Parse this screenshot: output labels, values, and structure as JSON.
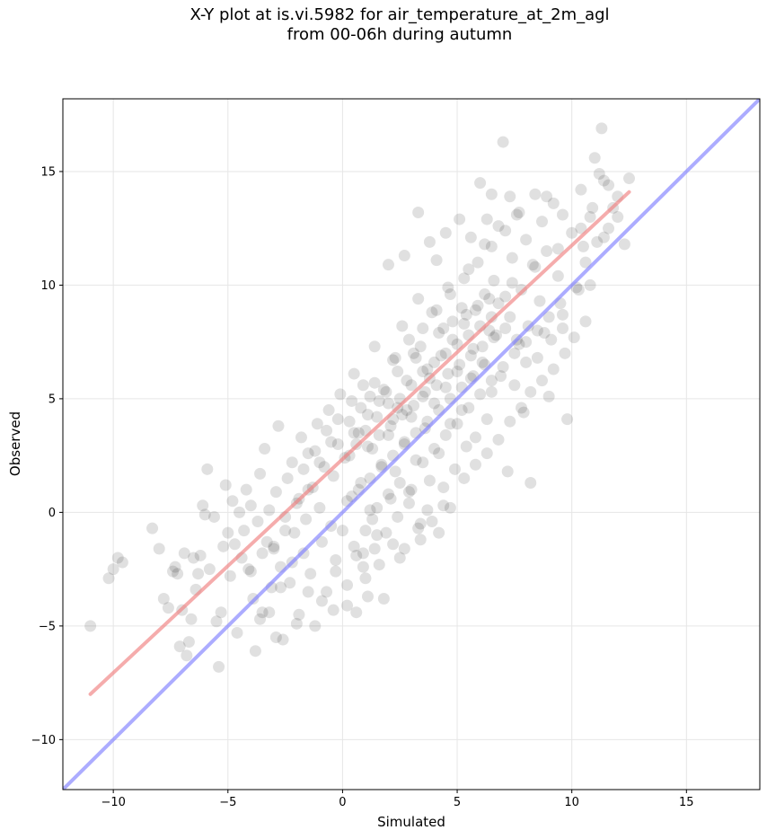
{
  "chart_data": {
    "type": "scatter",
    "title_line1": "X-Y plot at is.vi.5982 for air_temperature_at_2m_agl",
    "title_line2": "from 00-06h during autumn",
    "xlabel": "Simulated",
    "ylabel": "Observed",
    "xlim": [
      -12.2,
      18.2
    ],
    "ylim": [
      -12.2,
      18.2
    ],
    "xticks": [
      -10,
      -5,
      0,
      5,
      10,
      15
    ],
    "yticks": [
      -10,
      -5,
      0,
      5,
      10,
      15
    ],
    "xtick_labels": [
      "−10",
      "−5",
      "0",
      "5",
      "10",
      "15"
    ],
    "ytick_labels": [
      "−10",
      "−5",
      "0",
      "5",
      "10",
      "15"
    ],
    "grid": true,
    "point_color": "#000000",
    "point_alpha": 0.12,
    "fit_line": {
      "color": "#f08080",
      "x": [
        -11.0,
        12.5
      ],
      "y": [
        -8.0,
        14.1
      ]
    },
    "identity_line": {
      "color": "#7f7fff",
      "x": [
        -12.2,
        18.2
      ],
      "y": [
        -12.2,
        18.2
      ]
    },
    "points": [
      [
        -11.0,
        -5.0
      ],
      [
        -10.2,
        -2.9
      ],
      [
        -10.0,
        -2.5
      ],
      [
        -9.8,
        -2.0
      ],
      [
        -9.6,
        -2.2
      ],
      [
        -8.3,
        -0.7
      ],
      [
        -8.0,
        -1.6
      ],
      [
        -7.8,
        -3.8
      ],
      [
        -7.6,
        -4.2
      ],
      [
        -7.4,
        -2.6
      ],
      [
        -7.3,
        -2.4
      ],
      [
        -7.2,
        -2.7
      ],
      [
        -7.1,
        -5.9
      ],
      [
        -7.0,
        -4.3
      ],
      [
        -6.9,
        -1.8
      ],
      [
        -6.8,
        -6.3
      ],
      [
        -6.7,
        -5.7
      ],
      [
        -6.6,
        -4.7
      ],
      [
        -6.5,
        -2.0
      ],
      [
        -6.4,
        -3.4
      ],
      [
        -6.3,
        -2.7
      ],
      [
        -6.2,
        -1.9
      ],
      [
        -6.1,
        0.3
      ],
      [
        -6.0,
        -0.1
      ],
      [
        -5.9,
        1.9
      ],
      [
        -5.8,
        -2.5
      ],
      [
        -5.6,
        -0.2
      ],
      [
        -5.5,
        -4.8
      ],
      [
        -5.4,
        -6.8
      ],
      [
        -5.3,
        -4.4
      ],
      [
        -5.2,
        -1.5
      ],
      [
        -5.1,
        1.2
      ],
      [
        -5.0,
        -0.9
      ],
      [
        -4.9,
        -2.8
      ],
      [
        -4.8,
        0.5
      ],
      [
        -4.7,
        -1.4
      ],
      [
        -4.6,
        -5.3
      ],
      [
        -4.5,
        0.0
      ],
      [
        -4.4,
        -2.0
      ],
      [
        -4.3,
        -0.8
      ],
      [
        -4.2,
        1.0
      ],
      [
        -4.1,
        -2.5
      ],
      [
        -4.0,
        0.3
      ],
      [
        -3.9,
        -3.8
      ],
      [
        -3.8,
        -6.1
      ],
      [
        -3.7,
        -0.4
      ],
      [
        -3.6,
        1.7
      ],
      [
        -3.5,
        -4.4
      ],
      [
        -3.4,
        2.8
      ],
      [
        -3.3,
        -1.3
      ],
      [
        -3.2,
        0.1
      ],
      [
        -3.1,
        -3.3
      ],
      [
        -3.0,
        -1.6
      ],
      [
        -2.9,
        0.9
      ],
      [
        -2.8,
        3.8
      ],
      [
        -2.7,
        -2.4
      ],
      [
        -2.6,
        -5.6
      ],
      [
        -2.5,
        -0.2
      ],
      [
        -2.4,
        1.5
      ],
      [
        -2.3,
        -3.1
      ],
      [
        -2.2,
        2.2
      ],
      [
        -2.1,
        -0.9
      ],
      [
        -2.0,
        -4.9
      ],
      [
        -1.9,
        0.6
      ],
      [
        -1.8,
        3.3
      ],
      [
        -1.7,
        -1.8
      ],
      [
        -1.6,
        -0.3
      ],
      [
        -1.5,
        2.6
      ],
      [
        -1.4,
        -2.7
      ],
      [
        -1.3,
        1.1
      ],
      [
        -1.2,
        -5.0
      ],
      [
        -1.1,
        3.9
      ],
      [
        -1.0,
        0.2
      ],
      [
        -0.9,
        -1.3
      ],
      [
        -0.8,
        2.0
      ],
      [
        -0.7,
        -3.5
      ],
      [
        -0.6,
        4.5
      ],
      [
        -0.5,
        -0.6
      ],
      [
        -0.4,
        1.6
      ],
      [
        -0.3,
        -2.1
      ],
      [
        -0.2,
        3.0
      ],
      [
        -0.1,
        5.2
      ],
      [
        0.0,
        -0.8
      ],
      [
        0.1,
        2.4
      ],
      [
        0.2,
        -4.1
      ],
      [
        0.3,
        4.0
      ],
      [
        0.4,
        0.7
      ],
      [
        0.5,
        6.1
      ],
      [
        0.6,
        -1.9
      ],
      [
        0.7,
        3.5
      ],
      [
        0.8,
        1.3
      ],
      [
        0.9,
        5.6
      ],
      [
        1.0,
        -2.9
      ],
      [
        1.1,
        4.3
      ],
      [
        1.2,
        0.1
      ],
      [
        1.3,
        2.8
      ],
      [
        1.4,
        7.3
      ],
      [
        1.5,
        -1.0
      ],
      [
        1.6,
        4.9
      ],
      [
        1.7,
        2.1
      ],
      [
        1.8,
        -3.8
      ],
      [
        1.9,
        5.3
      ],
      [
        2.0,
        3.4
      ],
      [
        2.1,
        0.6
      ],
      [
        2.2,
        6.7
      ],
      [
        2.3,
        1.8
      ],
      [
        2.4,
        4.6
      ],
      [
        2.5,
        -2.0
      ],
      [
        2.6,
        8.2
      ],
      [
        2.7,
        3.1
      ],
      [
        2.8,
        5.8
      ],
      [
        2.9,
        0.9
      ],
      [
        3.0,
        4.2
      ],
      [
        3.1,
        7.0
      ],
      [
        3.2,
        2.3
      ],
      [
        3.3,
        9.4
      ],
      [
        3.4,
        -0.5
      ],
      [
        3.5,
        5.1
      ],
      [
        3.6,
        3.7
      ],
      [
        3.7,
        6.3
      ],
      [
        3.8,
        1.4
      ],
      [
        3.9,
        8.8
      ],
      [
        4.0,
        4.8
      ],
      [
        4.1,
        11.1
      ],
      [
        4.2,
        2.6
      ],
      [
        4.3,
        6.9
      ],
      [
        4.4,
        0.3
      ],
      [
        4.5,
        5.5
      ],
      [
        4.6,
        9.9
      ],
      [
        4.7,
        3.9
      ],
      [
        4.8,
        7.6
      ],
      [
        4.9,
        1.9
      ],
      [
        5.0,
        6.2
      ],
      [
        5.1,
        12.9
      ],
      [
        5.2,
        4.5
      ],
      [
        5.3,
        8.3
      ],
      [
        5.4,
        2.9
      ],
      [
        5.5,
        10.7
      ],
      [
        5.6,
        5.9
      ],
      [
        5.7,
        7.2
      ],
      [
        5.8,
        3.3
      ],
      [
        5.9,
        9.1
      ],
      [
        6.0,
        14.5
      ],
      [
        6.1,
        6.6
      ],
      [
        6.2,
        11.8
      ],
      [
        6.3,
        4.1
      ],
      [
        6.4,
        8.0
      ],
      [
        6.5,
        5.3
      ],
      [
        6.6,
        10.2
      ],
      [
        6.7,
        7.8
      ],
      [
        6.8,
        12.6
      ],
      [
        6.9,
        6.0
      ],
      [
        7.0,
        16.3
      ],
      [
        7.1,
        9.5
      ],
      [
        7.2,
        1.8
      ],
      [
        7.3,
        8.6
      ],
      [
        7.4,
        11.2
      ],
      [
        7.5,
        5.6
      ],
      [
        7.6,
        13.1
      ],
      [
        7.7,
        7.4
      ],
      [
        7.8,
        9.8
      ],
      [
        7.9,
        4.4
      ],
      [
        8.0,
        12.0
      ],
      [
        8.1,
        8.2
      ],
      [
        8.2,
        1.3
      ],
      [
        8.3,
        10.9
      ],
      [
        8.4,
        14.0
      ],
      [
        8.5,
        6.8
      ],
      [
        8.6,
        9.3
      ],
      [
        8.7,
        12.8
      ],
      [
        8.8,
        7.9
      ],
      [
        8.9,
        11.5
      ],
      [
        9.0,
        5.1
      ],
      [
        9.2,
        13.6
      ],
      [
        9.4,
        10.4
      ],
      [
        9.6,
        8.7
      ],
      [
        9.8,
        4.1
      ],
      [
        10.0,
        12.3
      ],
      [
        10.2,
        9.9
      ],
      [
        10.4,
        14.2
      ],
      [
        10.6,
        11.0
      ],
      [
        10.8,
        13.0
      ],
      [
        11.0,
        15.6
      ],
      [
        11.2,
        14.9
      ],
      [
        11.3,
        16.9
      ],
      [
        11.4,
        12.1
      ],
      [
        11.6,
        14.4
      ],
      [
        11.8,
        13.4
      ],
      [
        12.0,
        13.0
      ],
      [
        12.3,
        11.8
      ],
      [
        12.5,
        14.7
      ],
      [
        0.5,
        3.5
      ],
      [
        1.0,
        3.6
      ],
      [
        1.5,
        4.2
      ],
      [
        2.0,
        4.8
      ],
      [
        2.5,
        5.0
      ],
      [
        3.0,
        5.6
      ],
      [
        3.5,
        6.2
      ],
      [
        4.0,
        6.6
      ],
      [
        4.5,
        7.0
      ],
      [
        5.0,
        7.4
      ],
      [
        5.5,
        7.8
      ],
      [
        6.0,
        8.2
      ],
      [
        6.5,
        8.6
      ],
      [
        0.8,
        4.6
      ],
      [
        1.2,
        5.1
      ],
      [
        1.8,
        5.4
      ],
      [
        2.2,
        4.1
      ],
      [
        2.8,
        4.5
      ],
      [
        3.2,
        6.8
      ],
      [
        3.8,
        5.9
      ],
      [
        4.2,
        7.9
      ],
      [
        4.8,
        8.4
      ],
      [
        5.2,
        9.0
      ],
      [
        5.8,
        8.9
      ],
      [
        6.2,
        9.6
      ],
      [
        6.8,
        9.2
      ],
      [
        0.3,
        2.5
      ],
      [
        0.6,
        3.0
      ],
      [
        1.1,
        2.9
      ],
      [
        1.6,
        3.4
      ],
      [
        2.1,
        3.8
      ],
      [
        2.6,
        4.3
      ],
      [
        3.1,
        4.7
      ],
      [
        3.6,
        5.3
      ],
      [
        4.1,
        5.6
      ],
      [
        4.6,
        6.1
      ],
      [
        5.1,
        6.5
      ],
      [
        5.6,
        6.9
      ],
      [
        6.1,
        7.3
      ],
      [
        6.6,
        7.7
      ],
      [
        7.1,
        8.1
      ],
      [
        -0.5,
        3.1
      ],
      [
        -1.0,
        2.2
      ],
      [
        -1.5,
        1.0
      ],
      [
        -2.0,
        0.4
      ],
      [
        -2.5,
        -0.8
      ],
      [
        -3.0,
        -1.5
      ],
      [
        -3.5,
        -1.8
      ],
      [
        -4.0,
        -2.6
      ],
      [
        -0.2,
        4.1
      ],
      [
        -0.7,
        3.6
      ],
      [
        -1.2,
        2.7
      ],
      [
        -1.7,
        1.9
      ],
      [
        0.4,
        4.9
      ],
      [
        1.4,
        5.7
      ],
      [
        2.4,
        6.2
      ],
      [
        3.4,
        7.3
      ],
      [
        4.4,
        8.1
      ],
      [
        5.4,
        8.7
      ],
      [
        6.4,
        9.4
      ],
      [
        7.4,
        10.1
      ],
      [
        8.4,
        10.8
      ],
      [
        9.4,
        11.6
      ],
      [
        10.4,
        12.5
      ],
      [
        0.2,
        0.5
      ],
      [
        0.7,
        1.0
      ],
      [
        1.2,
        1.5
      ],
      [
        1.7,
        2.0
      ],
      [
        2.2,
        2.5
      ],
      [
        2.7,
        3.0
      ],
      [
        3.2,
        3.5
      ],
      [
        3.7,
        4.0
      ],
      [
        4.2,
        4.5
      ],
      [
        4.7,
        5.0
      ],
      [
        5.2,
        5.5
      ],
      [
        5.7,
        6.0
      ],
      [
        6.2,
        6.5
      ],
      [
        0.5,
        -1.5
      ],
      [
        1.0,
        -0.8
      ],
      [
        1.5,
        0.2
      ],
      [
        2.0,
        0.8
      ],
      [
        2.5,
        1.3
      ],
      [
        3.0,
        1.0
      ],
      [
        3.5,
        2.2
      ],
      [
        4.0,
        2.8
      ],
      [
        4.5,
        3.4
      ],
      [
        5.0,
        3.9
      ],
      [
        5.5,
        4.6
      ],
      [
        6.0,
        5.2
      ],
      [
        6.5,
        5.8
      ],
      [
        7.0,
        6.4
      ],
      [
        7.5,
        7.0
      ],
      [
        8.0,
        7.5
      ],
      [
        8.5,
        8.0
      ],
      [
        9.0,
        8.6
      ],
      [
        9.5,
        9.2
      ],
      [
        -0.3,
        -2.6
      ],
      [
        0.2,
        -3.2
      ],
      [
        0.9,
        -2.4
      ],
      [
        1.4,
        -1.6
      ],
      [
        1.9,
        -0.9
      ],
      [
        2.4,
        -0.2
      ],
      [
        2.9,
        0.4
      ],
      [
        3.4,
        -1.2
      ],
      [
        3.9,
        -0.4
      ],
      [
        4.4,
        1.1
      ],
      [
        2.3,
        6.8
      ],
      [
        2.9,
        7.6
      ],
      [
        3.5,
        8.1
      ],
      [
        4.1,
        8.9
      ],
      [
        4.7,
        9.6
      ],
      [
        5.3,
        10.3
      ],
      [
        5.9,
        11.0
      ],
      [
        6.5,
        11.7
      ],
      [
        7.1,
        12.4
      ],
      [
        7.7,
        13.2
      ],
      [
        3.8,
        11.9
      ],
      [
        4.5,
        12.3
      ],
      [
        5.6,
        12.1
      ],
      [
        6.3,
        12.9
      ],
      [
        7.3,
        13.9
      ],
      [
        8.9,
        13.9
      ],
      [
        9.6,
        13.1
      ],
      [
        2.0,
        10.9
      ],
      [
        2.7,
        11.3
      ],
      [
        3.3,
        13.2
      ],
      [
        6.5,
        14.0
      ],
      [
        -2.7,
        -3.3
      ],
      [
        -2.2,
        -2.2
      ],
      [
        -1.5,
        -3.5
      ],
      [
        -0.9,
        -3.9
      ],
      [
        -0.4,
        -4.3
      ],
      [
        0.6,
        -4.4
      ],
      [
        1.1,
        -3.7
      ],
      [
        -3.2,
        -4.4
      ],
      [
        -3.6,
        -4.7
      ],
      [
        -2.9,
        -5.5
      ],
      [
        -1.9,
        -4.5
      ],
      [
        0.9,
        -1.8
      ],
      [
        1.3,
        -0.3
      ],
      [
        1.6,
        -2.3
      ],
      [
        2.2,
        -1.4
      ],
      [
        2.7,
        -1.6
      ],
      [
        3.3,
        -0.7
      ],
      [
        3.7,
        0.1
      ],
      [
        4.2,
        -0.9
      ],
      [
        4.7,
        0.2
      ],
      [
        5.3,
        1.5
      ],
      [
        5.8,
        2.1
      ],
      [
        6.3,
        2.6
      ],
      [
        6.8,
        3.2
      ],
      [
        7.3,
        4.0
      ],
      [
        7.8,
        4.6
      ],
      [
        8.2,
        5.3
      ],
      [
        8.7,
        5.8
      ],
      [
        9.2,
        6.3
      ],
      [
        9.7,
        7.0
      ],
      [
        10.1,
        7.7
      ],
      [
        10.6,
        8.4
      ],
      [
        8.0,
        6.6
      ],
      [
        7.6,
        7.6
      ],
      [
        9.1,
        7.6
      ],
      [
        9.6,
        8.1
      ],
      [
        10.3,
        9.8
      ],
      [
        10.8,
        10.0
      ],
      [
        11.1,
        11.9
      ],
      [
        11.6,
        12.5
      ],
      [
        12.0,
        13.9
      ],
      [
        11.4,
        14.6
      ],
      [
        10.9,
        13.4
      ],
      [
        10.5,
        11.7
      ]
    ]
  }
}
